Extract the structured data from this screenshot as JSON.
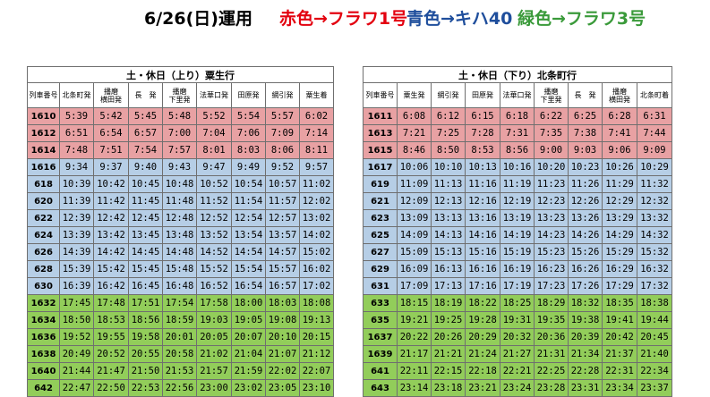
{
  "title": {
    "main": "6/26(日)運用",
    "red": "赤色→フラワ1号",
    "blue": "青色→キハ40",
    "green": "緑色→フラワ3号"
  },
  "colors": {
    "red_row": "#e8a1a3",
    "blue_row": "#b6cee6",
    "green_row": "#92cd5a",
    "red_text": "#e3000f",
    "blue_text": "#1f4e9c",
    "green_text": "#3a9a3a"
  },
  "left": {
    "heading": "土・休日（上り）粟生行",
    "columns": [
      "列車番号",
      "北条町発",
      "播磨|横田発",
      "長　発",
      "播磨|下里発",
      "法華口発",
      "田原発",
      "網引発",
      "粟生着"
    ],
    "rows": [
      {
        "color": "red",
        "cells": [
          "1610",
          "5:39",
          "5:42",
          "5:45",
          "5:48",
          "5:52",
          "5:54",
          "5:57",
          "6:02"
        ]
      },
      {
        "color": "red",
        "cells": [
          "1612",
          "6:51",
          "6:54",
          "6:57",
          "7:00",
          "7:04",
          "7:06",
          "7:09",
          "7:14"
        ]
      },
      {
        "color": "red",
        "cells": [
          "1614",
          "7:48",
          "7:51",
          "7:54",
          "7:57",
          "8:01",
          "8:03",
          "8:06",
          "8:11"
        ]
      },
      {
        "color": "blue",
        "cells": [
          "1616",
          "9:34",
          "9:37",
          "9:40",
          "9:43",
          "9:47",
          "9:49",
          "9:52",
          "9:57"
        ]
      },
      {
        "color": "blue",
        "cells": [
          "618",
          "10:39",
          "10:42",
          "10:45",
          "10:48",
          "10:52",
          "10:54",
          "10:57",
          "11:02"
        ]
      },
      {
        "color": "blue",
        "cells": [
          "620",
          "11:39",
          "11:42",
          "11:45",
          "11:48",
          "11:52",
          "11:54",
          "11:57",
          "12:02"
        ]
      },
      {
        "color": "blue",
        "cells": [
          "622",
          "12:39",
          "12:42",
          "12:45",
          "12:48",
          "12:52",
          "12:54",
          "12:57",
          "13:02"
        ]
      },
      {
        "color": "blue",
        "cells": [
          "624",
          "13:39",
          "13:42",
          "13:45",
          "13:48",
          "13:52",
          "13:54",
          "13:57",
          "14:02"
        ]
      },
      {
        "color": "blue",
        "cells": [
          "626",
          "14:39",
          "14:42",
          "14:45",
          "14:48",
          "14:52",
          "14:54",
          "14:57",
          "15:02"
        ]
      },
      {
        "color": "blue",
        "cells": [
          "628",
          "15:39",
          "15:42",
          "15:45",
          "15:48",
          "15:52",
          "15:54",
          "15:57",
          "16:02"
        ]
      },
      {
        "color": "blue",
        "cells": [
          "630",
          "16:39",
          "16:42",
          "16:45",
          "16:48",
          "16:52",
          "16:54",
          "16:57",
          "17:02"
        ]
      },
      {
        "color": "green",
        "cells": [
          "1632",
          "17:45",
          "17:48",
          "17:51",
          "17:54",
          "17:58",
          "18:00",
          "18:03",
          "18:08"
        ]
      },
      {
        "color": "green",
        "cells": [
          "1634",
          "18:50",
          "18:53",
          "18:56",
          "18:59",
          "19:03",
          "19:05",
          "19:08",
          "19:13"
        ]
      },
      {
        "color": "green",
        "cells": [
          "1636",
          "19:52",
          "19:55",
          "19:58",
          "20:01",
          "20:05",
          "20:07",
          "20:10",
          "20:15"
        ]
      },
      {
        "color": "green",
        "cells": [
          "1638",
          "20:49",
          "20:52",
          "20:55",
          "20:58",
          "21:02",
          "21:04",
          "21:07",
          "21:12"
        ]
      },
      {
        "color": "green",
        "cells": [
          "1640",
          "21:44",
          "21:47",
          "21:50",
          "21:53",
          "21:57",
          "21:59",
          "22:02",
          "22:07"
        ]
      },
      {
        "color": "green",
        "cells": [
          "642",
          "22:47",
          "22:50",
          "22:53",
          "22:56",
          "23:00",
          "23:02",
          "23:05",
          "23:10"
        ]
      }
    ]
  },
  "right": {
    "heading": "土・休日（下り）北条町行",
    "columns": [
      "列車番号",
      "粟生発",
      "網引発",
      "田原発",
      "法華口発",
      "播磨|下里発",
      "長　発",
      "播磨|横田発",
      "北条町着"
    ],
    "rows": [
      {
        "color": "red",
        "cells": [
          "1611",
          "6:08",
          "6:12",
          "6:15",
          "6:18",
          "6:22",
          "6:25",
          "6:28",
          "6:31"
        ]
      },
      {
        "color": "red",
        "cells": [
          "1613",
          "7:21",
          "7:25",
          "7:28",
          "7:31",
          "7:35",
          "7:38",
          "7:41",
          "7:44"
        ]
      },
      {
        "color": "red",
        "cells": [
          "1615",
          "8:46",
          "8:50",
          "8:53",
          "8:56",
          "9:00",
          "9:03",
          "9:06",
          "9:09"
        ]
      },
      {
        "color": "blue",
        "cells": [
          "1617",
          "10:06",
          "10:10",
          "10:13",
          "10:16",
          "10:20",
          "10:23",
          "10:26",
          "10:29"
        ]
      },
      {
        "color": "blue",
        "cells": [
          "619",
          "11:09",
          "11:13",
          "11:16",
          "11:19",
          "11:23",
          "11:26",
          "11:29",
          "11:32"
        ]
      },
      {
        "color": "blue",
        "cells": [
          "621",
          "12:09",
          "12:13",
          "12:16",
          "12:19",
          "12:23",
          "12:26",
          "12:29",
          "12:32"
        ]
      },
      {
        "color": "blue",
        "cells": [
          "623",
          "13:09",
          "13:13",
          "13:16",
          "13:19",
          "13:23",
          "13:26",
          "13:29",
          "13:32"
        ]
      },
      {
        "color": "blue",
        "cells": [
          "625",
          "14:09",
          "14:13",
          "14:16",
          "14:19",
          "14:23",
          "14:26",
          "14:29",
          "14:32"
        ]
      },
      {
        "color": "blue",
        "cells": [
          "627",
          "15:09",
          "15:13",
          "15:16",
          "15:19",
          "15:23",
          "15:26",
          "15:29",
          "15:32"
        ]
      },
      {
        "color": "blue",
        "cells": [
          "629",
          "16:09",
          "16:13",
          "16:16",
          "16:19",
          "16:23",
          "16:26",
          "16:29",
          "16:32"
        ]
      },
      {
        "color": "blue",
        "cells": [
          "631",
          "17:09",
          "17:13",
          "17:16",
          "17:19",
          "17:23",
          "17:26",
          "17:29",
          "17:32"
        ]
      },
      {
        "color": "green",
        "cells": [
          "633",
          "18:15",
          "18:19",
          "18:22",
          "18:25",
          "18:29",
          "18:32",
          "18:35",
          "18:38"
        ]
      },
      {
        "color": "green",
        "cells": [
          "635",
          "19:21",
          "19:25",
          "19:28",
          "19:31",
          "19:35",
          "19:38",
          "19:41",
          "19:44"
        ]
      },
      {
        "color": "green",
        "cells": [
          "1637",
          "20:22",
          "20:26",
          "20:29",
          "20:32",
          "20:36",
          "20:39",
          "20:42",
          "20:45"
        ]
      },
      {
        "color": "green",
        "cells": [
          "1639",
          "21:17",
          "21:21",
          "21:24",
          "21:27",
          "21:31",
          "21:34",
          "21:37",
          "21:40"
        ]
      },
      {
        "color": "green",
        "cells": [
          "641",
          "22:11",
          "22:15",
          "22:18",
          "22:21",
          "22:25",
          "22:28",
          "22:31",
          "22:34"
        ]
      },
      {
        "color": "green",
        "cells": [
          "643",
          "23:14",
          "23:18",
          "23:21",
          "23:24",
          "23:28",
          "23:31",
          "23:34",
          "23:37"
        ]
      }
    ]
  }
}
